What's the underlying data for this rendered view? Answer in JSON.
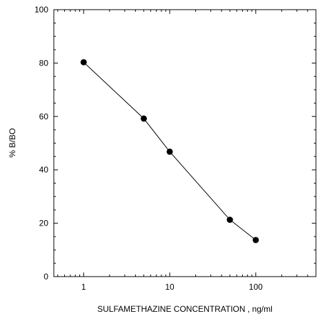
{
  "chart_data": {
    "type": "line",
    "title": "",
    "xlabel": "SULFAMETHAZINE CONCENTRATION , ng/ml",
    "ylabel": "% B/BO",
    "x_scale": "log",
    "xlim": [
      0.45,
      500
    ],
    "ylim": [
      0,
      100
    ],
    "x_ticks": [
      {
        "value": 1,
        "label": "1"
      },
      {
        "value": 10,
        "label": "10"
      },
      {
        "value": 100,
        "label": "100"
      }
    ],
    "y_ticks": [
      {
        "value": 0,
        "label": "0"
      },
      {
        "value": 20,
        "label": "20"
      },
      {
        "value": 40,
        "label": "40"
      },
      {
        "value": 60,
        "label": "60"
      },
      {
        "value": 80,
        "label": "80"
      },
      {
        "value": 100,
        "label": "100"
      }
    ],
    "grid": false,
    "legend": "none",
    "series": [
      {
        "x": [
          1,
          5,
          10,
          50,
          100
        ],
        "y": [
          80.3,
          59.2,
          46.8,
          21.3,
          13.7
        ],
        "color": "#000000",
        "marker": "filled-circle"
      }
    ]
  }
}
